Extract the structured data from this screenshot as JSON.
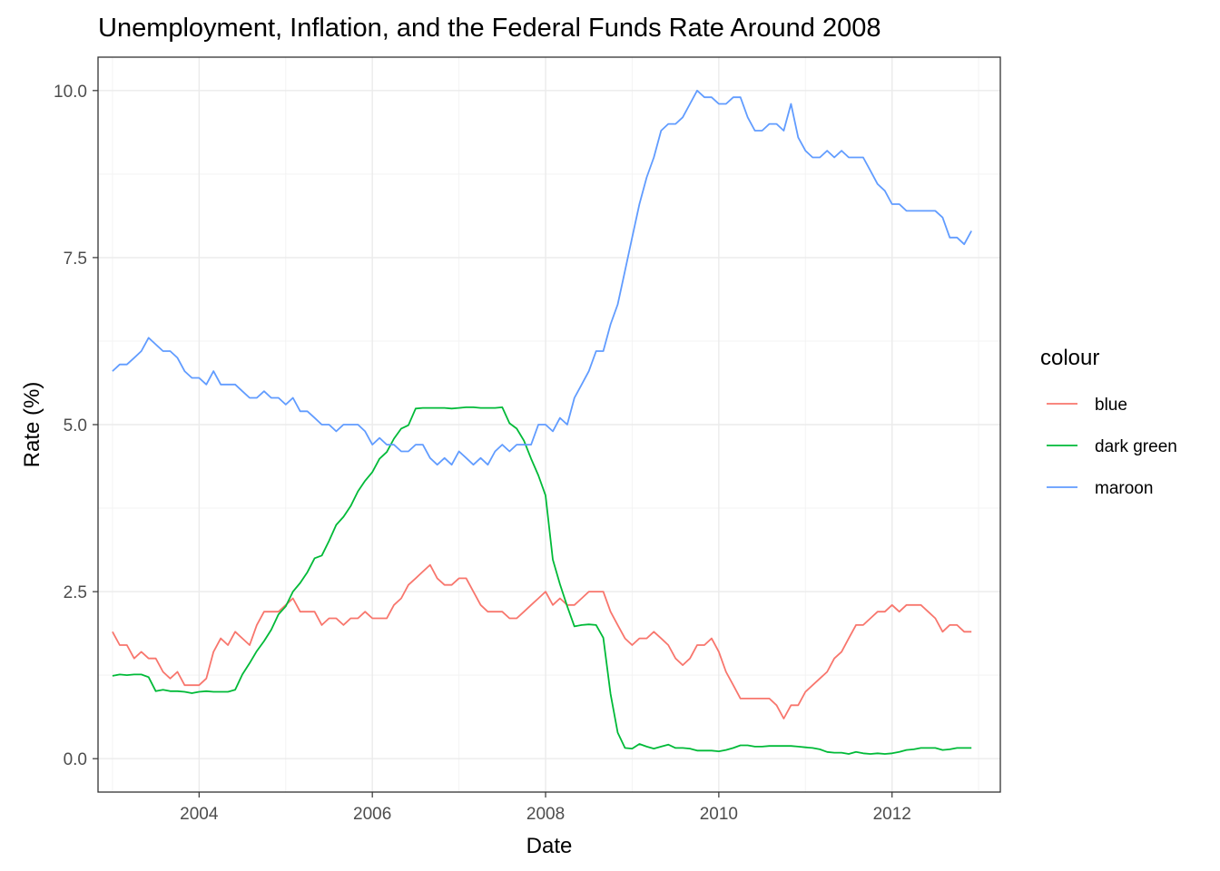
{
  "chart_data": {
    "type": "line",
    "title": "Unemployment, Inflation, and the Federal Funds Rate Around 2008",
    "xlabel": "Date",
    "ylabel": "Rate (%)",
    "xlim": [
      "2002-11-01",
      "2013-04-01"
    ],
    "ylim": [
      -0.5,
      10.5
    ],
    "x_ticks": [
      2004,
      2006,
      2008,
      2010,
      2012
    ],
    "y_ticks": [
      0.0,
      2.5,
      5.0,
      7.5,
      10.0
    ],
    "y_tick_labels": [
      "0.0",
      "2.5",
      "5.0",
      "7.5",
      "10.0"
    ],
    "grid": true,
    "legend": {
      "title": "colour",
      "position": "right"
    },
    "x": [
      "2003-01",
      "2003-02",
      "2003-03",
      "2003-04",
      "2003-05",
      "2003-06",
      "2003-07",
      "2003-08",
      "2003-09",
      "2003-10",
      "2003-11",
      "2003-12",
      "2004-01",
      "2004-02",
      "2004-03",
      "2004-04",
      "2004-05",
      "2004-06",
      "2004-07",
      "2004-08",
      "2004-09",
      "2004-10",
      "2004-11",
      "2004-12",
      "2005-01",
      "2005-02",
      "2005-03",
      "2005-04",
      "2005-05",
      "2005-06",
      "2005-07",
      "2005-08",
      "2005-09",
      "2005-10",
      "2005-11",
      "2005-12",
      "2006-01",
      "2006-02",
      "2006-03",
      "2006-04",
      "2006-05",
      "2006-06",
      "2006-07",
      "2006-08",
      "2006-09",
      "2006-10",
      "2006-11",
      "2006-12",
      "2007-01",
      "2007-02",
      "2007-03",
      "2007-04",
      "2007-05",
      "2007-06",
      "2007-07",
      "2007-08",
      "2007-09",
      "2007-10",
      "2007-11",
      "2007-12",
      "2008-01",
      "2008-02",
      "2008-03",
      "2008-04",
      "2008-05",
      "2008-06",
      "2008-07",
      "2008-08",
      "2008-09",
      "2008-10",
      "2008-11",
      "2008-12",
      "2009-01",
      "2009-02",
      "2009-03",
      "2009-04",
      "2009-05",
      "2009-06",
      "2009-07",
      "2009-08",
      "2009-09",
      "2009-10",
      "2009-11",
      "2009-12",
      "2010-01",
      "2010-02",
      "2010-03",
      "2010-04",
      "2010-05",
      "2010-06",
      "2010-07",
      "2010-08",
      "2010-09",
      "2010-10",
      "2010-11",
      "2010-12",
      "2011-01",
      "2011-02",
      "2011-03",
      "2011-04",
      "2011-05",
      "2011-06",
      "2011-07",
      "2011-08",
      "2011-09",
      "2011-10",
      "2011-11",
      "2011-12",
      "2012-01",
      "2012-02",
      "2012-03",
      "2012-04",
      "2012-05",
      "2012-06",
      "2012-07",
      "2012-08",
      "2012-09",
      "2012-10",
      "2012-11",
      "2012-12"
    ],
    "series": [
      {
        "name": "blue",
        "color": "#F8766D",
        "values": [
          1.9,
          1.7,
          1.7,
          1.5,
          1.6,
          1.5,
          1.5,
          1.3,
          1.2,
          1.3,
          1.1,
          1.1,
          1.1,
          1.2,
          1.6,
          1.8,
          1.7,
          1.9,
          1.8,
          1.7,
          2.0,
          2.2,
          2.2,
          2.2,
          2.3,
          2.4,
          2.2,
          2.2,
          2.2,
          2.0,
          2.1,
          2.1,
          2.0,
          2.1,
          2.1,
          2.2,
          2.1,
          2.1,
          2.1,
          2.3,
          2.4,
          2.6,
          2.7,
          2.8,
          2.9,
          2.7,
          2.6,
          2.6,
          2.7,
          2.7,
          2.5,
          2.3,
          2.2,
          2.2,
          2.2,
          2.1,
          2.1,
          2.2,
          2.3,
          2.4,
          2.5,
          2.3,
          2.4,
          2.3,
          2.3,
          2.4,
          2.5,
          2.5,
          2.5,
          2.2,
          2.0,
          1.8,
          1.7,
          1.8,
          1.8,
          1.9,
          1.8,
          1.7,
          1.5,
          1.4,
          1.5,
          1.7,
          1.7,
          1.8,
          1.6,
          1.3,
          1.1,
          0.9,
          0.9,
          0.9,
          0.9,
          0.9,
          0.8,
          0.6,
          0.8,
          0.8,
          1.0,
          1.1,
          1.2,
          1.3,
          1.5,
          1.6,
          1.8,
          2.0,
          2.0,
          2.1,
          2.2,
          2.2,
          2.3,
          2.2,
          2.3,
          2.3,
          2.3,
          2.2,
          2.1,
          1.9,
          2.0,
          2.0,
          1.9,
          1.9
        ]
      },
      {
        "name": "dark green",
        "color": "#00BA38",
        "values": [
          1.24,
          1.26,
          1.25,
          1.26,
          1.26,
          1.22,
          1.01,
          1.03,
          1.01,
          1.01,
          1.0,
          0.98,
          1.0,
          1.01,
          1.0,
          1.0,
          1.0,
          1.03,
          1.26,
          1.43,
          1.61,
          1.76,
          1.93,
          2.16,
          2.28,
          2.5,
          2.63,
          2.79,
          3.0,
          3.04,
          3.26,
          3.5,
          3.62,
          3.78,
          4.0,
          4.16,
          4.29,
          4.49,
          4.59,
          4.79,
          4.94,
          4.99,
          5.24,
          5.25,
          5.25,
          5.25,
          5.25,
          5.24,
          5.25,
          5.26,
          5.26,
          5.25,
          5.25,
          5.25,
          5.26,
          5.02,
          4.94,
          4.76,
          4.49,
          4.24,
          3.94,
          2.98,
          2.61,
          2.28,
          1.98,
          2.0,
          2.01,
          2.0,
          1.81,
          0.97,
          0.39,
          0.16,
          0.15,
          0.22,
          0.18,
          0.15,
          0.18,
          0.21,
          0.16,
          0.16,
          0.15,
          0.12,
          0.12,
          0.12,
          0.11,
          0.13,
          0.16,
          0.2,
          0.2,
          0.18,
          0.18,
          0.19,
          0.19,
          0.19,
          0.19,
          0.18,
          0.17,
          0.16,
          0.14,
          0.1,
          0.09,
          0.09,
          0.07,
          0.1,
          0.08,
          0.07,
          0.08,
          0.07,
          0.08,
          0.1,
          0.13,
          0.14,
          0.16,
          0.16,
          0.16,
          0.13,
          0.14,
          0.16,
          0.16,
          0.16
        ]
      },
      {
        "name": "maroon",
        "color": "#619CFF",
        "values": [
          5.8,
          5.9,
          5.9,
          6.0,
          6.1,
          6.3,
          6.2,
          6.1,
          6.1,
          6.0,
          5.8,
          5.7,
          5.7,
          5.6,
          5.8,
          5.6,
          5.6,
          5.6,
          5.5,
          5.4,
          5.4,
          5.5,
          5.4,
          5.4,
          5.3,
          5.4,
          5.2,
          5.2,
          5.1,
          5.0,
          5.0,
          4.9,
          5.0,
          5.0,
          5.0,
          4.9,
          4.7,
          4.8,
          4.7,
          4.7,
          4.6,
          4.6,
          4.7,
          4.7,
          4.5,
          4.4,
          4.5,
          4.4,
          4.6,
          4.5,
          4.4,
          4.5,
          4.4,
          4.6,
          4.7,
          4.6,
          4.7,
          4.7,
          4.7,
          5.0,
          5.0,
          4.9,
          5.1,
          5.0,
          5.4,
          5.6,
          5.8,
          6.1,
          6.1,
          6.5,
          6.8,
          7.3,
          7.8,
          8.3,
          8.7,
          9.0,
          9.4,
          9.5,
          9.5,
          9.6,
          9.8,
          10.0,
          9.9,
          9.9,
          9.8,
          9.8,
          9.9,
          9.9,
          9.6,
          9.4,
          9.4,
          9.5,
          9.5,
          9.4,
          9.8,
          9.3,
          9.1,
          9.0,
          9.0,
          9.1,
          9.0,
          9.1,
          9.0,
          9.0,
          9.0,
          8.8,
          8.6,
          8.5,
          8.3,
          8.3,
          8.2,
          8.2,
          8.2,
          8.2,
          8.2,
          8.1,
          7.8,
          7.8,
          7.7,
          7.9
        ]
      }
    ]
  }
}
